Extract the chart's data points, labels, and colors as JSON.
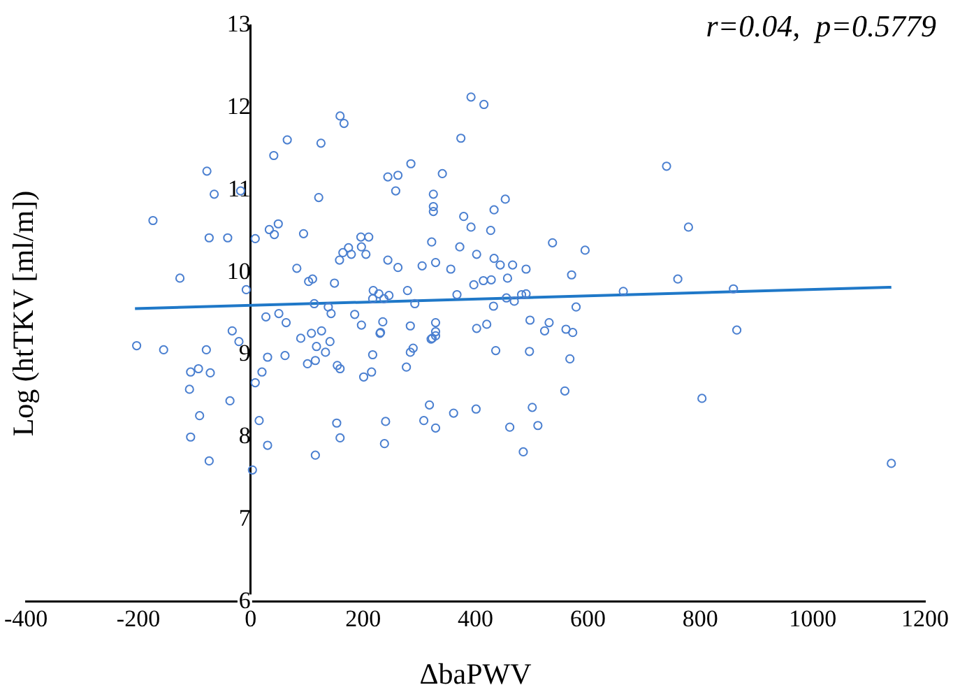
{
  "chart_data": {
    "type": "scatter",
    "xlabel": "ΔbaPWV",
    "ylabel": "Log (htTKV [ml/m])",
    "annotations": [
      "r=0.04,  p=0.5779"
    ],
    "xlim": [
      -400,
      1200
    ],
    "xticks": [
      -400,
      -200,
      0,
      200,
      400,
      600,
      800,
      1000,
      1200
    ],
    "ylim": [
      6,
      13
    ],
    "yticks": [
      6,
      7,
      8,
      9,
      10,
      11,
      12,
      13
    ],
    "grid": false,
    "legend": false,
    "marker": "circle",
    "series": [
      {
        "type": "scatter",
        "color": "#4a7fd0",
        "x": [
          -174,
          -126,
          -78,
          -65,
          -74,
          -41,
          -18,
          -8,
          8,
          41,
          65,
          33,
          42,
          49,
          94,
          82,
          103,
          110,
          113,
          121,
          125,
          149,
          138,
          143,
          159,
          166,
          158,
          164,
          174,
          179,
          196,
          210,
          197,
          205,
          185,
          197,
          218,
          228,
          217,
          237,
          246,
          244,
          262,
          235,
          231,
          244,
          262,
          258,
          285,
          279,
          292,
          284,
          305,
          325,
          325,
          325,
          322,
          329,
          341,
          356,
          329,
          329,
          323,
          329,
          367,
          372,
          374,
          379,
          392,
          392,
          397,
          402,
          402,
          415,
          740,
          453,
          433,
          427,
          779,
          537,
          595,
          433,
          444,
          466,
          490,
          571,
          760,
          414,
          428,
          457,
          455,
          469,
          482,
          490,
          663,
          859,
          432,
          579,
          497,
          531,
          523,
          420,
          561,
          573,
          865,
          436,
          496,
          568,
          559,
          803,
          361,
          401,
          501,
          461,
          511,
          485,
          1140,
          -203,
          -155,
          -79,
          -21,
          -33,
          -93,
          -107,
          -72,
          -109,
          -37,
          -91,
          -107,
          -74,
          3,
          8,
          20,
          30,
          61,
          15,
          30,
          89,
          108,
          126,
          117,
          133,
          141,
          101,
          115,
          154,
          159,
          201,
          215,
          217,
          230,
          277,
          284,
          289,
          321,
          153,
          159,
          115,
          240,
          238,
          308,
          318,
          329,
          27,
          50,
          63
        ],
        "values": [
          10.63,
          9.93,
          11.23,
          10.95,
          10.42,
          10.42,
          10.99,
          9.79,
          10.41,
          11.42,
          11.61,
          10.52,
          10.46,
          10.59,
          10.47,
          10.05,
          9.89,
          9.92,
          9.62,
          10.91,
          11.57,
          9.87,
          9.58,
          9.5,
          11.9,
          11.81,
          10.15,
          10.24,
          10.3,
          10.22,
          10.43,
          10.43,
          10.31,
          10.22,
          9.49,
          9.36,
          9.78,
          9.74,
          9.68,
          9.68,
          9.72,
          10.15,
          10.06,
          9.4,
          9.27,
          11.16,
          11.18,
          10.99,
          11.32,
          9.78,
          9.62,
          9.35,
          10.08,
          10.95,
          10.8,
          10.74,
          10.37,
          10.12,
          11.2,
          10.04,
          9.39,
          9.28,
          9.2,
          9.23,
          9.73,
          10.31,
          11.63,
          10.68,
          10.55,
          12.13,
          9.85,
          10.22,
          9.32,
          12.04,
          11.29,
          10.89,
          10.76,
          10.51,
          10.55,
          10.36,
          10.27,
          10.17,
          10.09,
          10.09,
          10.04,
          9.97,
          9.92,
          9.9,
          9.91,
          9.93,
          9.69,
          9.65,
          9.73,
          9.74,
          9.77,
          9.8,
          9.59,
          9.58,
          9.42,
          9.39,
          9.29,
          9.37,
          9.31,
          9.27,
          9.3,
          9.05,
          9.04,
          8.95,
          8.56,
          8.47,
          8.29,
          8.34,
          8.36,
          8.12,
          8.14,
          7.82,
          7.68,
          9.11,
          9.06,
          9.06,
          9.16,
          9.29,
          8.83,
          8.79,
          8.78,
          8.58,
          8.44,
          8.26,
          8.0,
          7.71,
          7.6,
          8.66,
          8.79,
          8.97,
          8.99,
          8.2,
          7.9,
          9.2,
          9.26,
          9.29,
          9.1,
          9.03,
          9.16,
          8.89,
          8.93,
          8.87,
          8.83,
          8.73,
          8.79,
          9.0,
          9.26,
          8.85,
          9.03,
          9.08,
          9.19,
          8.17,
          7.99,
          7.78,
          8.19,
          7.92,
          8.2,
          8.39,
          8.11,
          9.46,
          9.5,
          9.39
        ]
      },
      {
        "type": "line",
        "marker": "none",
        "color": "#1f78c8",
        "x": [
          -206,
          1140
        ],
        "values": [
          9.56,
          9.82
        ]
      }
    ]
  }
}
